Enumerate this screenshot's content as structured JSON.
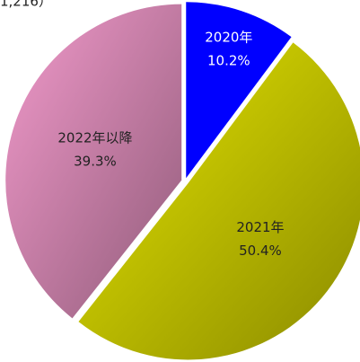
{
  "chart_data": {
    "type": "pie",
    "note": "1,216）",
    "categories": [
      "2020年",
      "2021年",
      "2022年以降"
    ],
    "values": [
      10.2,
      50.4,
      39.3
    ],
    "value_labels": [
      "10.2%",
      "50.4%",
      "39.3%"
    ],
    "colors": [
      "#0000ff",
      "#e6e600",
      "#f29acb"
    ]
  }
}
